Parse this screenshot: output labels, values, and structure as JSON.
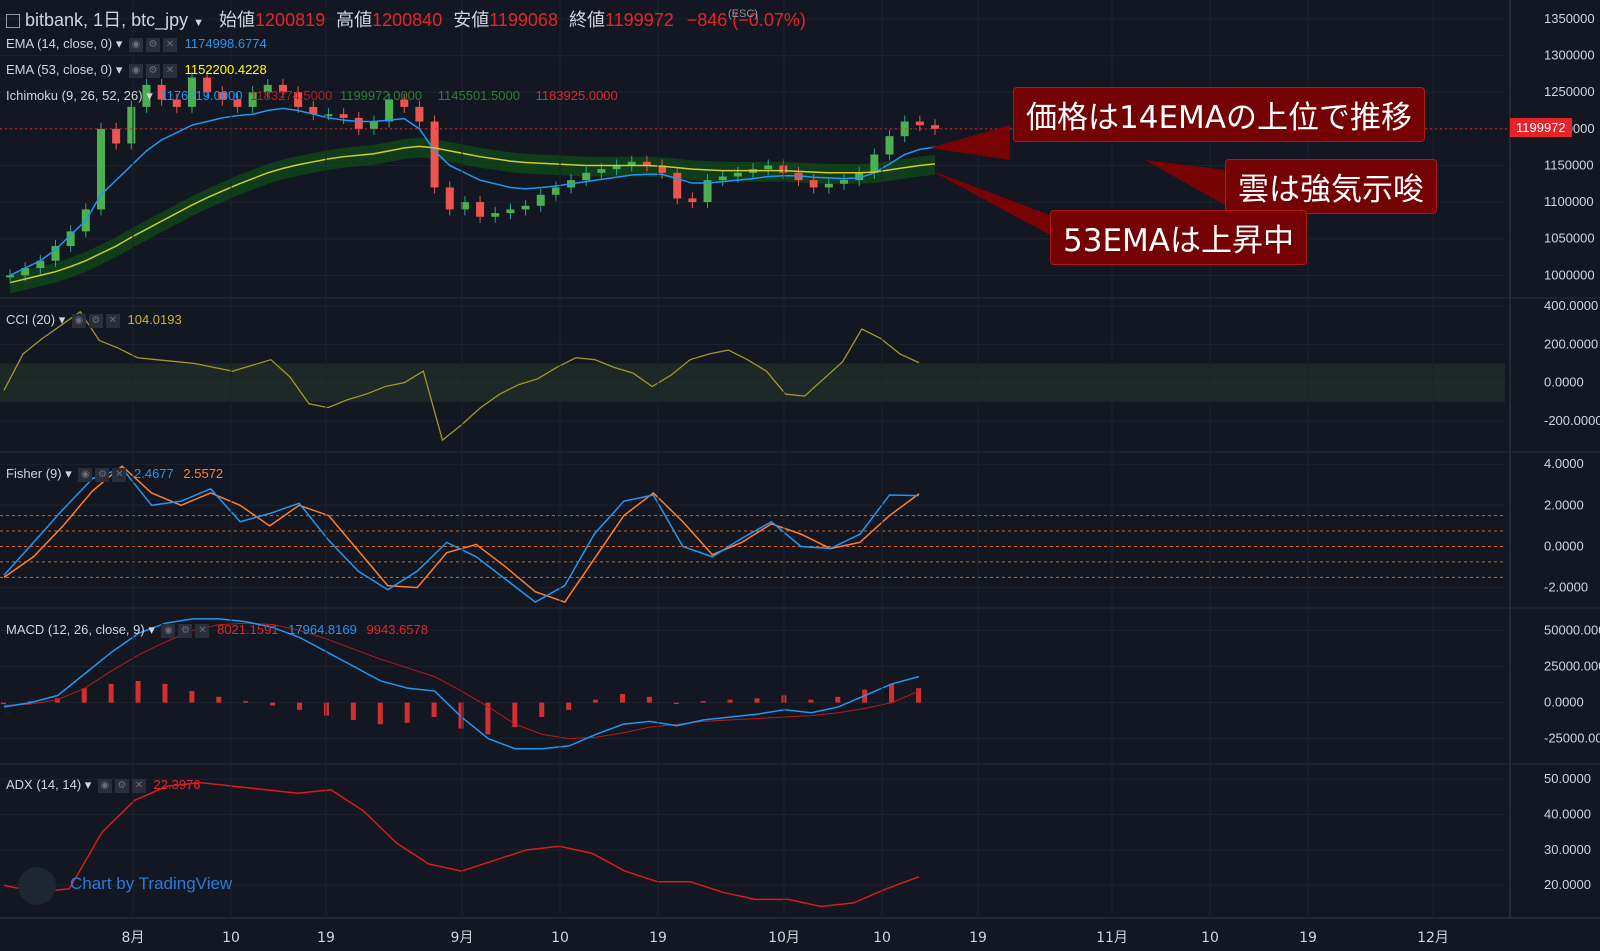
{
  "header": {
    "symbol": "bitbank, 1日, btc_jpy",
    "open_label": "始値",
    "open": "1200819",
    "high_label": "高値",
    "high": "1200840",
    "low_label": "安値",
    "low": "1199068",
    "close_label": "終値",
    "close": "1199972",
    "change": "−846 (−0.07%)",
    "esc_hint": "(ESC)"
  },
  "indicators": {
    "ema14": {
      "label": "EMA (14, close, 0)",
      "value": "1174998.6774"
    },
    "ema53": {
      "label": "EMA (53, close, 0)",
      "value": "1152200.4228"
    },
    "ichimoku": {
      "label": "Ichimoku (9, 26, 52, 26)",
      "v1": "1176219.0000",
      "v2": "1183274.5000",
      "v3": "1199972.0000",
      "v4": "1145501.5000",
      "v5": "1183925.0000"
    },
    "cci": {
      "label": "CCI (20)",
      "value": "104.0193"
    },
    "fisher": {
      "label": "Fisher (9)",
      "v1": "2.4677",
      "v2": "2.5572"
    },
    "macd": {
      "label": "MACD (12, 26, close, 9)",
      "v1": "8021.1591",
      "v2": "17964.8169",
      "v3": "9943.6578"
    },
    "adx": {
      "label": "ADX (14, 14)",
      "value": "22.3976"
    }
  },
  "callouts": {
    "c1": "価格は14EMAの上位で推移",
    "c2": "雲は強気示唆",
    "c3": "53EMAは上昇中"
  },
  "price_tag": "1199972",
  "watermark": "Chart by TradingView",
  "chart_data": {
    "type": "line",
    "title": "bitbank, 1日, btc_jpy",
    "x_tick_labels": [
      "8月",
      "10",
      "19",
      "9月",
      "10",
      "19",
      "10月",
      "10",
      "19",
      "11月",
      "10",
      "19",
      "12月"
    ],
    "panes": [
      {
        "name": "price",
        "y_ticks": [
          1350000,
          1300000,
          1250000,
          1200000,
          1150000,
          1100000,
          1050000,
          1000000
        ],
        "ylim": [
          980000,
          1365000
        ],
        "candles_close": [
          1000000,
          1010000,
          1020000,
          1040000,
          1060000,
          1090000,
          1200000,
          1180000,
          1230000,
          1260000,
          1240000,
          1230000,
          1270000,
          1250000,
          1240000,
          1230000,
          1250000,
          1260000,
          1250000,
          1230000,
          1220000,
          1220000,
          1215000,
          1200000,
          1210000,
          1240000,
          1230000,
          1210000,
          1120000,
          1090000,
          1100000,
          1080000,
          1085000,
          1090000,
          1095000,
          1110000,
          1120000,
          1130000,
          1140000,
          1145000,
          1150000,
          1155000,
          1150000,
          1140000,
          1105000,
          1100000,
          1130000,
          1135000,
          1140000,
          1145000,
          1150000,
          1140000,
          1130000,
          1120000,
          1125000,
          1130000,
          1140000,
          1165000,
          1190000,
          1210000,
          1205000,
          1200000
        ],
        "ema14": [
          1000000,
          1010000,
          1020000,
          1035000,
          1055000,
          1075000,
          1110000,
          1130000,
          1150000,
          1170000,
          1185000,
          1195000,
          1205000,
          1210000,
          1215000,
          1218000,
          1220000,
          1225000,
          1228000,
          1225000,
          1220000,
          1215000,
          1212000,
          1210000,
          1210000,
          1212000,
          1214000,
          1200000,
          1170000,
          1150000,
          1140000,
          1130000,
          1125000,
          1120000,
          1118000,
          1120000,
          1122000,
          1125000,
          1128000,
          1131000,
          1134000,
          1137000,
          1138000,
          1138000,
          1132000,
          1126000,
          1126000,
          1128000,
          1130000,
          1132000,
          1135000,
          1136000,
          1136000,
          1134000,
          1133000,
          1132000,
          1133000,
          1140000,
          1152000,
          1165000,
          1172000,
          1175000
        ],
        "ema53": [
          990000,
          995000,
          1000000,
          1005000,
          1012000,
          1020000,
          1030000,
          1040000,
          1052000,
          1063000,
          1074000,
          1085000,
          1096000,
          1106000,
          1115000,
          1124000,
          1132000,
          1140000,
          1146000,
          1151000,
          1155000,
          1159000,
          1162000,
          1164000,
          1166000,
          1170000,
          1174000,
          1176000,
          1174000,
          1170000,
          1166000,
          1162000,
          1159000,
          1156000,
          1154000,
          1153000,
          1152000,
          1151000,
          1150000,
          1150000,
          1150000,
          1150000,
          1150000,
          1149000,
          1147000,
          1145000,
          1144000,
          1143000,
          1143000,
          1143000,
          1143000,
          1143000,
          1142000,
          1141000,
          1140000,
          1140000,
          1140000,
          1141000,
          1144000,
          1147000,
          1150000,
          1152200
        ]
      },
      {
        "name": "CCI",
        "y_ticks": [
          400,
          200,
          0,
          -200
        ],
        "ylim": [
          -320,
          400
        ],
        "values": [
          -40,
          150,
          230,
          300,
          370,
          220,
          180,
          130,
          120,
          110,
          100,
          80,
          60,
          90,
          120,
          30,
          -110,
          -130,
          -90,
          -60,
          -20,
          0,
          60,
          -300,
          -220,
          -130,
          -60,
          -10,
          20,
          80,
          130,
          120,
          80,
          50,
          -20,
          40,
          120,
          150,
          170,
          120,
          60,
          -60,
          -70,
          20,
          110,
          280,
          230,
          150,
          104
        ]
      },
      {
        "name": "Fisher",
        "y_ticks": [
          4,
          2,
          0,
          -2
        ],
        "ylim": [
          -2.6,
          4.2
        ],
        "fisher": [
          -1.4,
          0.2,
          1.8,
          3.3,
          3.8,
          2.0,
          2.2,
          2.8,
          1.2,
          1.6,
          2.1,
          0.3,
          -1.2,
          -2.1,
          -1.2,
          0.2,
          -0.5,
          -1.6,
          -2.7,
          -1.9,
          0.6,
          2.2,
          2.5,
          0.0,
          -0.5,
          0.4,
          1.2,
          0.0,
          -0.1,
          0.6,
          2.5,
          2.47
        ],
        "signal": [
          -1.5,
          -0.5,
          1.0,
          2.7,
          3.9,
          2.6,
          2.0,
          2.6,
          2.0,
          1.0,
          2.0,
          1.5,
          -0.2,
          -1.9,
          -2.0,
          -0.3,
          0.1,
          -1.0,
          -2.2,
          -2.7,
          -0.6,
          1.5,
          2.6,
          1.2,
          -0.4,
          0.2,
          1.1,
          0.6,
          -0.1,
          0.2,
          1.5,
          2.56
        ]
      },
      {
        "name": "MACD",
        "y_ticks": [
          50000,
          25000,
          0,
          -25000
        ],
        "ylim": [
          -37000,
          60000
        ],
        "macd": [
          -3000,
          0,
          5000,
          20000,
          35000,
          48000,
          55000,
          58000,
          58000,
          56000,
          52000,
          45000,
          35000,
          25000,
          15000,
          10000,
          8000,
          -10000,
          -25000,
          -32000,
          -32000,
          -30000,
          -22000,
          -15000,
          -13000,
          -16000,
          -12000,
          -10000,
          -8000,
          -5000,
          -7000,
          -3000,
          5000,
          13000,
          18000
        ],
        "signal": [
          -2000,
          -1000,
          2000,
          10000,
          22000,
          33000,
          42000,
          50000,
          54000,
          55000,
          54000,
          50000,
          44000,
          37000,
          30000,
          24000,
          18000,
          8000,
          -3000,
          -15000,
          -22000,
          -25000,
          -24000,
          -21000,
          -17000,
          -15000,
          -13000,
          -12000,
          -11000,
          -10000,
          -9000,
          -7000,
          -4000,
          0,
          8000
        ]
      },
      {
        "name": "ADX",
        "y_ticks": [
          50,
          40,
          30,
          20
        ],
        "ylim": [
          13,
          52
        ],
        "values": [
          20,
          18,
          19,
          35,
          44,
          48,
          49,
          48,
          47,
          46,
          47,
          41,
          32,
          26,
          24,
          27,
          30,
          31,
          29,
          24,
          21,
          21,
          18,
          16,
          16,
          14,
          15,
          19,
          22.4
        ]
      }
    ]
  }
}
